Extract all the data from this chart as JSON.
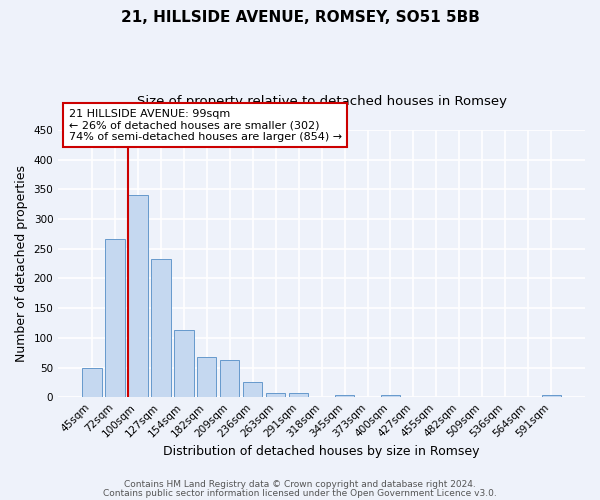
{
  "title": "21, HILLSIDE AVENUE, ROMSEY, SO51 5BB",
  "subtitle": "Size of property relative to detached houses in Romsey",
  "xlabel": "Distribution of detached houses by size in Romsey",
  "ylabel": "Number of detached properties",
  "bar_labels": [
    "45sqm",
    "72sqm",
    "100sqm",
    "127sqm",
    "154sqm",
    "182sqm",
    "209sqm",
    "236sqm",
    "263sqm",
    "291sqm",
    "318sqm",
    "345sqm",
    "373sqm",
    "400sqm",
    "427sqm",
    "455sqm",
    "482sqm",
    "509sqm",
    "536sqm",
    "564sqm",
    "591sqm"
  ],
  "bar_values": [
    49,
    267,
    341,
    232,
    114,
    68,
    62,
    25,
    7,
    7,
    0,
    4,
    0,
    3,
    0,
    0,
    0,
    0,
    0,
    0,
    4
  ],
  "bar_color": "#c5d8f0",
  "bar_edge_color": "#6699cc",
  "background_color": "#eef2fa",
  "grid_color": "#ffffff",
  "ylim": [
    0,
    450
  ],
  "yticks": [
    0,
    50,
    100,
    150,
    200,
    250,
    300,
    350,
    400,
    450
  ],
  "vline_color": "#cc0000",
  "annotation_title": "21 HILLSIDE AVENUE: 99sqm",
  "annotation_line1": "← 26% of detached houses are smaller (302)",
  "annotation_line2": "74% of semi-detached houses are larger (854) →",
  "annotation_box_color": "#cc0000",
  "footer1": "Contains HM Land Registry data © Crown copyright and database right 2024.",
  "footer2": "Contains public sector information licensed under the Open Government Licence v3.0.",
  "title_fontsize": 11,
  "subtitle_fontsize": 9.5,
  "axis_label_fontsize": 9,
  "tick_fontsize": 7.5,
  "annotation_fontsize": 8,
  "footer_fontsize": 6.5
}
